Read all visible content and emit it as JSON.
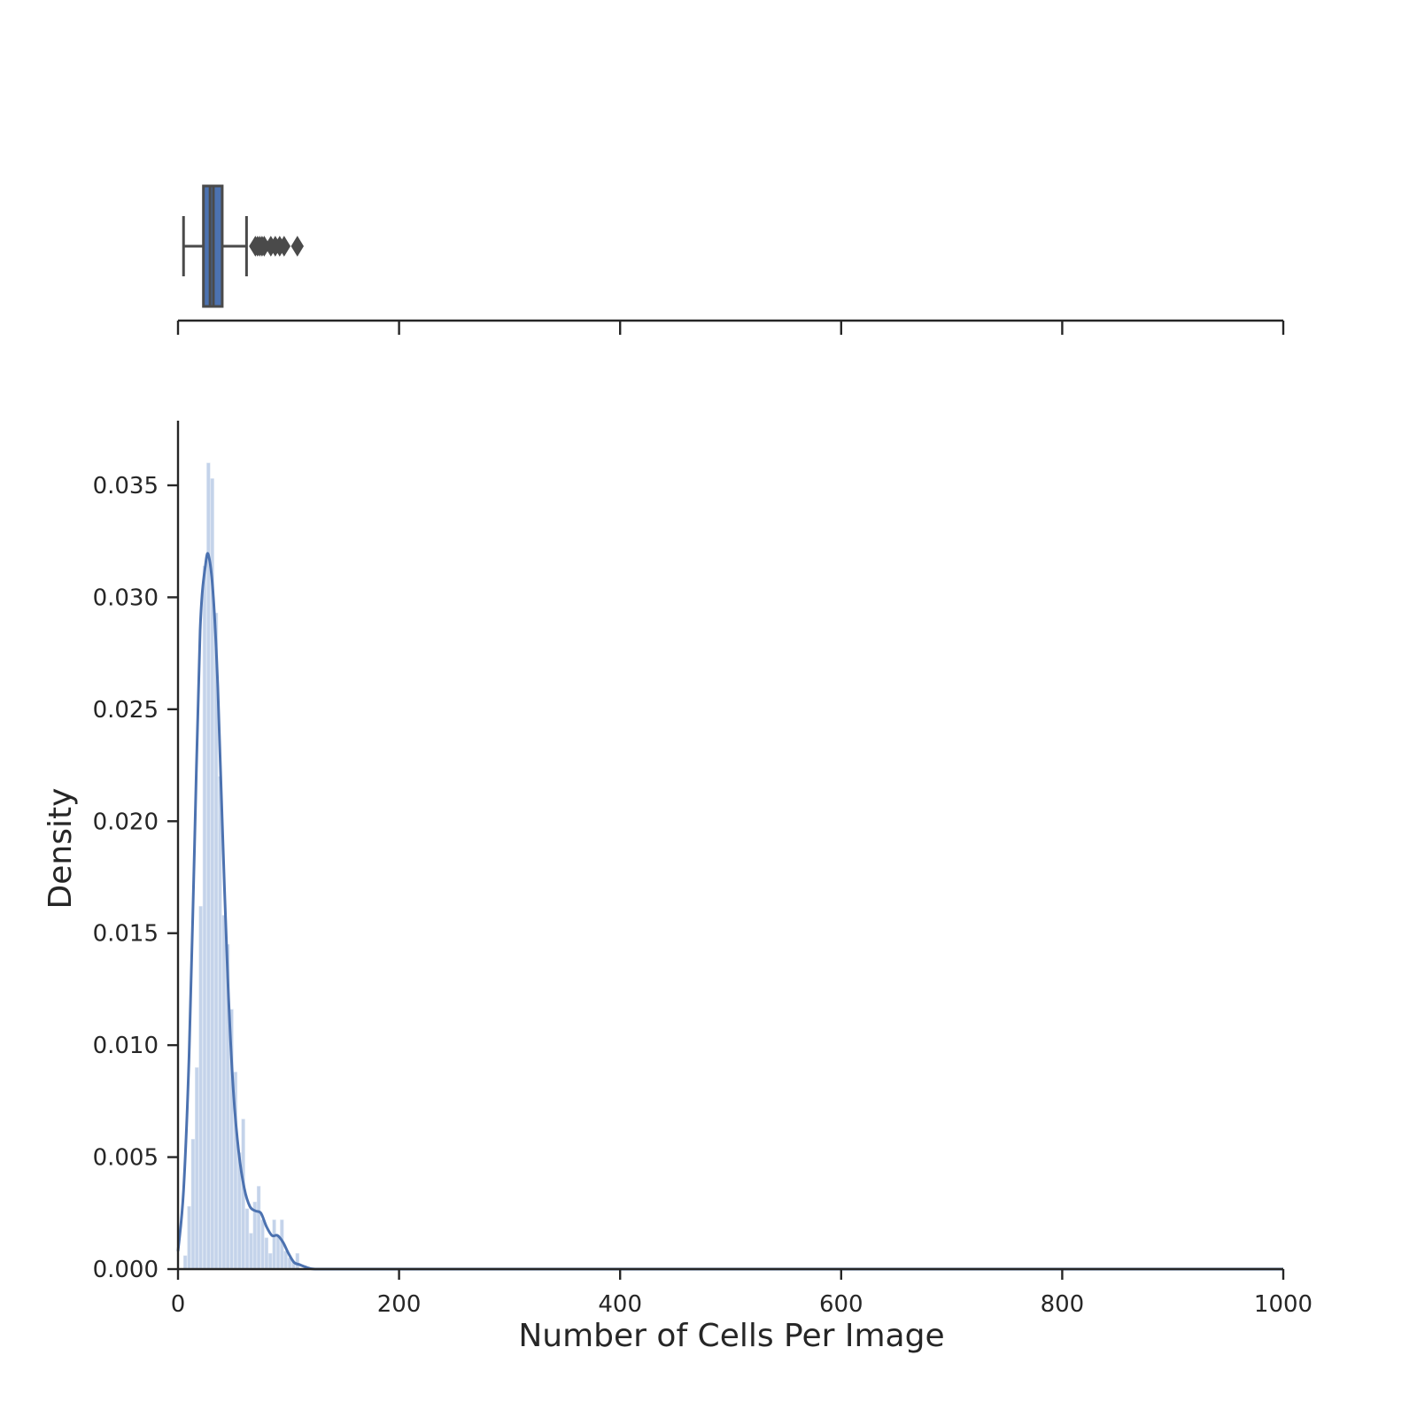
{
  "chart_data": [
    {
      "type": "box",
      "title": "",
      "xlim": [
        0,
        1000
      ],
      "x_ticks": [
        0,
        200,
        400,
        600,
        800,
        1000
      ],
      "box": {
        "whisker_low": 5,
        "q1": 23,
        "median": 29,
        "mean": 32,
        "q3": 40,
        "whisker_high": 62
      },
      "outliers": [
        70,
        72,
        74,
        76,
        78,
        84,
        88,
        92,
        96,
        108
      ],
      "colors": {
        "box": "#4c72b0",
        "edge": "#4a4a4a"
      }
    },
    {
      "type": "histogram",
      "title": "",
      "xlabel": "Number of Cells Per Image",
      "ylabel": "Density",
      "xlim": [
        0,
        1000
      ],
      "ylim": [
        0,
        0.038
      ],
      "x_ticks": [
        0,
        200,
        400,
        600,
        800,
        1000
      ],
      "y_ticks": [
        "0.000",
        "0.005",
        "0.010",
        "0.015",
        "0.020",
        "0.025",
        "0.030",
        "0.035"
      ],
      "grid": false,
      "bin_width": 3.5,
      "bins": [
        {
          "x": 5,
          "density": 0.0006
        },
        {
          "x": 8.5,
          "density": 0.0028
        },
        {
          "x": 12,
          "density": 0.0058
        },
        {
          "x": 15.5,
          "density": 0.009
        },
        {
          "x": 19,
          "density": 0.0162
        },
        {
          "x": 22.5,
          "density": 0.0314
        },
        {
          "x": 26,
          "density": 0.036
        },
        {
          "x": 29.5,
          "density": 0.0353
        },
        {
          "x": 33,
          "density": 0.0293
        },
        {
          "x": 36.5,
          "density": 0.022
        },
        {
          "x": 40,
          "density": 0.0158
        },
        {
          "x": 43.5,
          "density": 0.0145
        },
        {
          "x": 47,
          "density": 0.0116
        },
        {
          "x": 50.5,
          "density": 0.0088
        },
        {
          "x": 54,
          "density": 0.0052
        },
        {
          "x": 57.5,
          "density": 0.0067
        },
        {
          "x": 61,
          "density": 0.0027
        },
        {
          "x": 64.5,
          "density": 0.0016
        },
        {
          "x": 68,
          "density": 0.003
        },
        {
          "x": 71.5,
          "density": 0.0037
        },
        {
          "x": 75,
          "density": 0.0022
        },
        {
          "x": 78.5,
          "density": 0.0014
        },
        {
          "x": 82,
          "density": 0.0007
        },
        {
          "x": 85.5,
          "density": 0.0022
        },
        {
          "x": 89,
          "density": 0.0015
        },
        {
          "x": 92.5,
          "density": 0.0022
        },
        {
          "x": 96,
          "density": 0.0008
        },
        {
          "x": 99.5,
          "density": 0.0005
        },
        {
          "x": 103,
          "density": 0.0003
        },
        {
          "x": 106.5,
          "density": 0.0007
        }
      ],
      "kde": {
        "x": [
          0,
          5,
          10,
          15,
          20,
          25,
          28,
          32,
          36,
          40,
          45,
          50,
          55,
          60,
          65,
          70,
          75,
          80,
          85,
          90,
          95,
          100,
          105,
          110,
          115,
          120,
          125
        ],
        "y": [
          0.0008,
          0.0035,
          0.0095,
          0.019,
          0.0285,
          0.0315,
          0.0318,
          0.03,
          0.026,
          0.02,
          0.013,
          0.008,
          0.0052,
          0.0036,
          0.0028,
          0.0026,
          0.0025,
          0.0019,
          0.0015,
          0.0015,
          0.0012,
          0.0007,
          0.0003,
          0.0002,
          0.0001,
          2e-05,
          0
        ]
      },
      "colors": {
        "bars": "#c4d3ea",
        "kde": "#4c72b0",
        "axes": "#262626"
      }
    }
  ]
}
